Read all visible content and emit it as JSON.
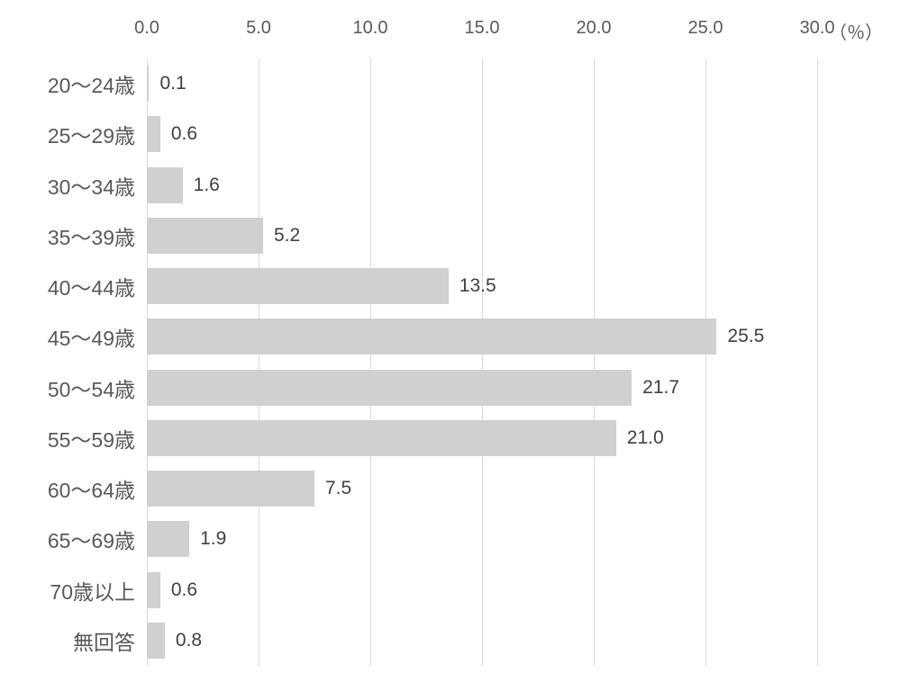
{
  "chart_data": {
    "type": "bar",
    "orientation": "horizontal",
    "title": "",
    "xlabel": "",
    "ylabel": "",
    "categories": [
      "20〜24歳",
      "25〜29歳",
      "30〜34歳",
      "35〜39歳",
      "40〜44歳",
      "45〜49歳",
      "50〜54歳",
      "55〜59歳",
      "60〜64歳",
      "65〜69歳",
      "70歳以上",
      "無回答"
    ],
    "values": [
      0.1,
      0.6,
      1.6,
      5.2,
      13.5,
      25.5,
      21.7,
      21.0,
      7.5,
      1.9,
      0.6,
      0.8
    ],
    "value_labels": [
      "0.1",
      "0.6",
      "1.6",
      "5.2",
      "13.5",
      "25.5",
      "21.7",
      "21.0",
      "7.5",
      "1.9",
      "0.6",
      "0.8"
    ],
    "axis": {
      "position": "top",
      "min": 0,
      "max": 30,
      "tick_values": [
        0,
        5,
        10,
        15,
        20,
        25,
        30
      ],
      "tick_labels": [
        "0.0",
        "5.0",
        "10.0",
        "15.0",
        "20.0",
        "25.0",
        "30.0"
      ],
      "unit_label": "（％）"
    },
    "grid": true,
    "legend": "none",
    "colors": {
      "bar": "#d0d0d0",
      "gridline": "#d9d9d9",
      "axis_text": "#595959",
      "category_text": "#595959",
      "value_text": "#404040",
      "background": "#ffffff"
    }
  }
}
